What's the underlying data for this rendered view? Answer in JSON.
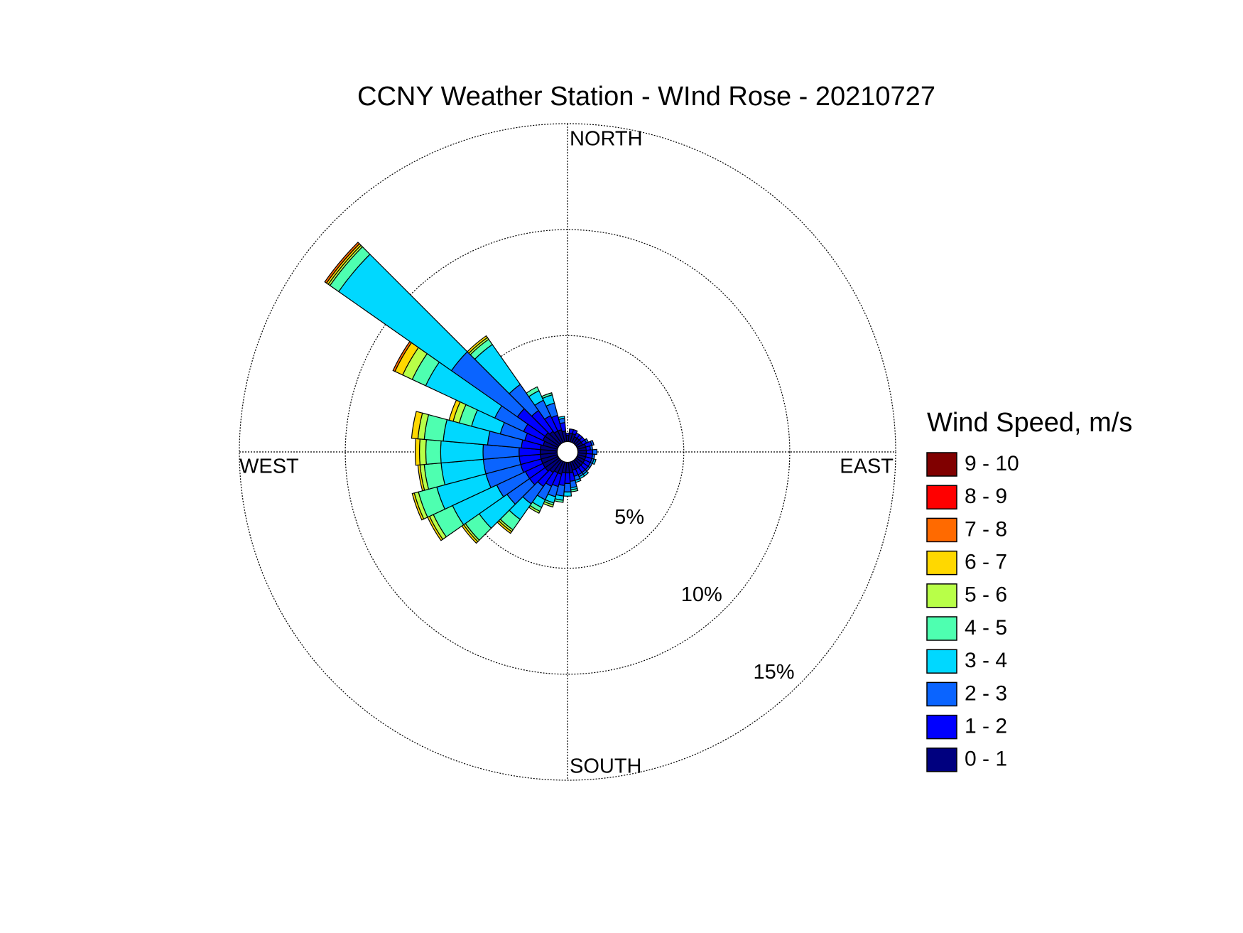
{
  "chart_data": {
    "type": "windrose",
    "title": "CCNY Weather Station - WInd Rose - 20210727",
    "direction_labels": [
      "NORTH",
      "EAST",
      "SOUTH",
      "WEST"
    ],
    "legend_title": "Wind Speed, m/s",
    "legend_position": "right",
    "x": [
      0,
      10,
      20,
      30,
      40,
      50,
      60,
      70,
      80,
      90,
      100,
      110,
      120,
      130,
      140,
      150,
      160,
      170,
      180,
      190,
      200,
      210,
      220,
      230,
      240,
      250,
      260,
      270,
      280,
      290,
      300,
      310,
      320,
      330,
      340,
      350
    ],
    "rlim": [
      0,
      15
    ],
    "rticks": [
      {
        "value": 5,
        "label": "5%"
      },
      {
        "value": 10,
        "label": "10%"
      },
      {
        "value": 15,
        "label": "15%"
      }
    ],
    "grid": true,
    "series": [
      {
        "name": "0 - 1",
        "color": "#00007f",
        "values": [
          0.3,
          0.4,
          0.4,
          0.3,
          0.3,
          0.3,
          0.3,
          0.4,
          0.4,
          0.4,
          0.4,
          0.4,
          0.4,
          0.4,
          0.4,
          0.4,
          0.4,
          0.5,
          0.5,
          0.5,
          0.6,
          0.6,
          0.7,
          0.8,
          0.8,
          0.8,
          0.8,
          0.8,
          0.8,
          0.7,
          0.8,
          0.8,
          0.7,
          0.6,
          0.6,
          0.5
        ]
      },
      {
        "name": "1 - 2",
        "color": "#0000ff",
        "values": [
          0.1,
          0.2,
          0.2,
          0.2,
          0.2,
          0.2,
          0.2,
          0.3,
          0.2,
          0.3,
          0.3,
          0.3,
          0.3,
          0.3,
          0.3,
          0.3,
          0.3,
          0.4,
          0.5,
          0.6,
          0.6,
          0.7,
          0.8,
          0.9,
          0.9,
          1.0,
          1.0,
          1.0,
          0.9,
          0.9,
          1.0,
          1.6,
          1.2,
          0.8,
          0.7,
          0.4
        ]
      },
      {
        "name": "2 - 3",
        "color": "#0a64ff",
        "values": [
          0,
          0,
          0,
          0,
          0,
          0,
          0.1,
          0.1,
          0.1,
          0.2,
          0.1,
          0.1,
          0.1,
          0.1,
          0.1,
          0.1,
          0.2,
          0.3,
          0.4,
          0.5,
          0.5,
          0.7,
          1.0,
          1.3,
          1.5,
          1.7,
          1.7,
          1.7,
          1.6,
          1.2,
          1.5,
          3.8,
          1.5,
          0.8,
          0.6,
          0.2
        ]
      },
      {
        "name": "3 - 4",
        "color": "#00d8ff",
        "values": [
          0,
          0,
          0,
          0,
          0,
          0,
          0,
          0,
          0,
          0,
          0,
          0.1,
          0,
          0,
          0.1,
          0.1,
          0.1,
          0.1,
          0.2,
          0.2,
          0.3,
          0.4,
          0.9,
          1.6,
          2.3,
          2.4,
          2.0,
          2.0,
          2.1,
          1.4,
          3.6,
          6.5,
          2.3,
          0.5,
          0.4,
          0.1
        ]
      },
      {
        "name": "4 - 5",
        "color": "#4effb0",
        "values": [
          0,
          0,
          0,
          0,
          0,
          0,
          0,
          0,
          0,
          0,
          0,
          0,
          0,
          0,
          0,
          0,
          0,
          0.1,
          0,
          0.1,
          0.1,
          0.2,
          0.6,
          0.8,
          1.0,
          0.9,
          0.8,
          0.7,
          0.9,
          0.6,
          0.7,
          0.5,
          0.3,
          0.2,
          0.1,
          0
        ]
      },
      {
        "name": "5 - 6",
        "color": "#b8ff48",
        "values": [
          0,
          0,
          0,
          0,
          0,
          0,
          0,
          0,
          0,
          0,
          0,
          0,
          0,
          0,
          0,
          0,
          0,
          0,
          0,
          0,
          0.1,
          0.1,
          0.1,
          0.1,
          0.2,
          0.2,
          0.2,
          0.3,
          0.3,
          0.3,
          0.5,
          0.1,
          0.1,
          0,
          0,
          0
        ]
      },
      {
        "name": "6 - 7",
        "color": "#ffd800",
        "values": [
          0,
          0,
          0,
          0,
          0,
          0,
          0,
          0,
          0,
          0,
          0,
          0,
          0,
          0,
          0,
          0,
          0,
          0,
          0,
          0,
          0,
          0,
          0.1,
          0.1,
          0.1,
          0.1,
          0.1,
          0.2,
          0.3,
          0.2,
          0.4,
          0.1,
          0.1,
          0,
          0,
          0
        ]
      },
      {
        "name": "7 - 8",
        "color": "#ff6a00",
        "values": [
          0,
          0,
          0,
          0,
          0,
          0,
          0,
          0,
          0,
          0,
          0,
          0,
          0,
          0,
          0,
          0,
          0,
          0,
          0,
          0,
          0,
          0,
          0,
          0,
          0,
          0,
          0,
          0,
          0,
          0,
          0.1,
          0.1,
          0,
          0,
          0,
          0
        ]
      },
      {
        "name": "8 - 9",
        "color": "#ff0000",
        "values": [
          0,
          0,
          0,
          0,
          0,
          0,
          0,
          0,
          0,
          0,
          0,
          0,
          0,
          0,
          0,
          0,
          0,
          0,
          0,
          0,
          0,
          0,
          0,
          0,
          0,
          0,
          0,
          0,
          0,
          0,
          0,
          0,
          0,
          0,
          0,
          0
        ]
      },
      {
        "name": "9 - 10",
        "color": "#800000",
        "values": [
          0,
          0,
          0,
          0,
          0,
          0,
          0,
          0,
          0,
          0,
          0,
          0,
          0,
          0,
          0,
          0,
          0,
          0,
          0,
          0,
          0,
          0,
          0,
          0,
          0,
          0,
          0,
          0,
          0,
          0,
          0,
          0,
          0,
          0,
          0,
          0
        ]
      }
    ]
  }
}
